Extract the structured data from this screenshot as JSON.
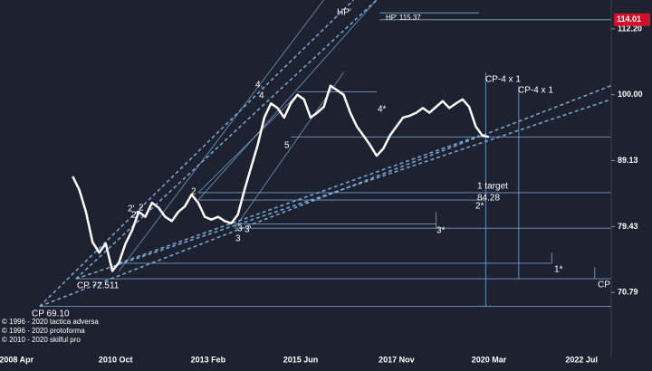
{
  "chart_data": {
    "type": "line",
    "log_scale": true,
    "color": "#ffffff",
    "x": [
      "2009 Sep",
      "2009 Nov",
      "2010 Jan",
      "2010 Mar",
      "2010 May",
      "2010 Jul",
      "2010 Sep",
      "2010 Nov",
      "2011 Jan",
      "2011 Mar",
      "2011 May",
      "2011 Jul",
      "2011 Sep",
      "2011 Nov",
      "2012 Jan",
      "2012 Mar",
      "2012 May",
      "2012 Jul",
      "2012 Sep",
      "2012 Nov",
      "2013 Jan",
      "2013 Mar",
      "2013 May",
      "2013 Jul",
      "2013 Sep",
      "2013 Nov",
      "2014 Jan",
      "2014 Mar",
      "2014 May",
      "2014 Jul",
      "2014 Sep",
      "2014 Nov",
      "2015 Jan",
      "2015 Mar",
      "2015 May",
      "2015 Jul",
      "2015 Sep",
      "2015 Nov",
      "2016 Jan",
      "2016 Mar",
      "2016 May",
      "2016 Jul",
      "2016 Sep",
      "2016 Nov",
      "2017 Jan",
      "2017 Mar",
      "2017 May",
      "2017 Jul",
      "2017 Sep",
      "2017 Nov",
      "2018 Jan",
      "2018 Mar",
      "2018 May",
      "2018 Jul",
      "2018 Sep",
      "2018 Nov",
      "2019 Jan",
      "2019 Mar",
      "2019 May",
      "2019 Jul",
      "2019 Sep",
      "2019 Nov",
      "2020 Jan",
      "2020 Mar"
    ],
    "values": [
      86.7,
      84.7,
      81.5,
      77.3,
      75.9,
      77.1,
      73.5,
      74.6,
      77.1,
      78.9,
      81.5,
      80.8,
      82.8,
      82.1,
      80.8,
      80.2,
      81.5,
      82.3,
      84.0,
      82.8,
      80.8,
      80.4,
      80.8,
      80.2,
      79.9,
      81.1,
      84.7,
      88.1,
      91.6,
      96.1,
      98.5,
      97.7,
      96.1,
      98.5,
      100,
      99.2,
      96.1,
      96.9,
      97.9,
      101.6,
      100.8,
      100,
      96.9,
      94.6,
      93.1,
      91.6,
      89.9,
      91.0,
      93.1,
      94.6,
      96.1,
      96.4,
      96.9,
      97.7,
      96.9,
      97.9,
      98.9,
      97.7,
      98.5,
      99.2,
      97.9,
      94.6,
      93.1,
      92.9
    ],
    "xlim": [
      "2007 Nov",
      "2023 Apr"
    ],
    "xticks": [
      "2008 Apr",
      "2010 Oct",
      "2013 Feb",
      "2015 Jun",
      "2017 Nov",
      "2020 Mar",
      "2022 Jul"
    ],
    "ylim": [
      63.2,
      118.0
    ],
    "yticks": [
      70.79,
      79.43,
      89.13,
      {
        "value": 100,
        "label": "100.00"
      },
      {
        "value": 112.2,
        "label": "112.20"
      }
    ],
    "last_price": {
      "value": 114.01,
      "color": "#d0112b"
    },
    "level_color": "#7fb0e0",
    "levels": [
      {
        "price": 115.37,
        "from": "2017 Jun",
        "to": "2019 Dec"
      },
      {
        "price": 114.01,
        "from": "2017 Jun",
        "to": "2023 Apr"
      },
      {
        "price": 100.5,
        "from": "2015 May",
        "to": "2017 May"
      },
      {
        "price": 92.9,
        "from": "2015 Mar",
        "to": "2023 Apr"
      },
      {
        "price": 84.28,
        "from": "2012 Nov",
        "to": "2023 Apr"
      },
      {
        "price": 83.2,
        "from": "2012 Nov",
        "to": "2020 Feb"
      },
      {
        "price": 79.8,
        "from": "2013 Oct",
        "to": "2018 Nov"
      },
      {
        "price": 79.2,
        "from": "2013 Oct",
        "to": "2023 Apr"
      },
      {
        "price": 74.5,
        "from": "2010 Nov",
        "to": "2021 Oct"
      },
      {
        "price": 72.511,
        "from": "2009 Oct",
        "to": "2023 Apr"
      },
      {
        "price": 69.1,
        "from": "2008 Nov",
        "to": "2023 Apr"
      }
    ],
    "verticals": [
      {
        "date": "2020 Feb",
        "from": 104.0,
        "to": 69.1
      },
      {
        "date": "2020 Dec",
        "from": 101.6,
        "to": 72.511
      },
      {
        "date": "2018 Nov",
        "from": 81.5,
        "to": 79.2
      },
      {
        "date": "2021 Oct",
        "from": 75.9,
        "to": 74.5
      },
      {
        "date": "2022 Nov",
        "from": 74.0,
        "to": 72.511
      }
    ],
    "trendlines": [
      {
        "from": [
          "2008 Nov",
          69.1
        ],
        "to": [
          "2023 Apr",
          101.6
        ],
        "dashed": true
      },
      {
        "from": [
          "2009 Oct",
          72.511
        ],
        "to": [
          "2023 Apr",
          99.2
        ],
        "dashed": true
      },
      {
        "from": [
          "2010 Nov",
          74.5
        ],
        "to": [
          "2019 Dec",
          93.1
        ],
        "dashed": true
      },
      {
        "from": [
          "2008 Nov",
          69.1
        ],
        "to": [
          "2016 Oct",
          118.0
        ],
        "dashed": true
      },
      {
        "from": [
          "2009 Oct",
          72.511
        ],
        "to": [
          "2017 May",
          118.0
        ],
        "dashed": true
      },
      {
        "from": [
          "2010 Nov",
          73.5
        ],
        "to": [
          "2016 Jan",
          118.0
        ],
        "dashed": false
      },
      {
        "from": [
          "2012 Nov",
          83.2
        ],
        "to": [
          "2017 May",
          118.0
        ],
        "dashed": false
      },
      {
        "from": [
          "2013 Oct",
          79.2
        ],
        "to": [
          "2016 Jul",
          104.0
        ],
        "dashed": false
      },
      {
        "from": [
          "2012 Nov",
          84.28
        ],
        "to": [
          "2015 May",
          100.0
        ],
        "dashed": false
      }
    ],
    "annotations": [
      "HP'",
      "HP' 115.37",
      "CP-4 x 1",
      "CP-4 x 1",
      "4*",
      "4.",
      "4",
      "5",
      "2",
      "2",
      "2'",
      "2'",
      "1 target",
      "84.28",
      "2*",
      "3",
      "3'",
      "3",
      "3*",
      "1*",
      "CP",
      "CP 72.511",
      "CP 69.10"
    ],
    "credits": [
      "© 1996 - 2020 tactica adversa",
      "© 1996 - 2020 protoforma",
      "© 2010 - 2020 skilful pro"
    ]
  }
}
